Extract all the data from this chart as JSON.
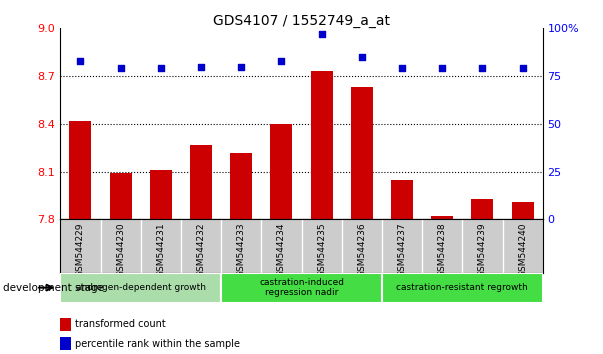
{
  "title": "GDS4107 / 1552749_a_at",
  "categories": [
    "GSM544229",
    "GSM544230",
    "GSM544231",
    "GSM544232",
    "GSM544233",
    "GSM544234",
    "GSM544235",
    "GSM544236",
    "GSM544237",
    "GSM544238",
    "GSM544239",
    "GSM544240"
  ],
  "bar_values": [
    8.42,
    8.09,
    8.11,
    8.27,
    8.22,
    8.4,
    8.73,
    8.63,
    8.05,
    7.82,
    7.93,
    7.91
  ],
  "dot_values": [
    83,
    79,
    79,
    80,
    80,
    83,
    97,
    85,
    79,
    79,
    79,
    79
  ],
  "bar_color": "#cc0000",
  "dot_color": "#0000cc",
  "ylim_left": [
    7.8,
    9.0
  ],
  "ylim_right": [
    0,
    100
  ],
  "yticks_left": [
    7.8,
    8.1,
    8.4,
    8.7,
    9.0
  ],
  "yticks_right": [
    0,
    25,
    50,
    75,
    100
  ],
  "ytick_labels_right": [
    "0",
    "25",
    "50",
    "75",
    "100%"
  ],
  "hlines": [
    8.1,
    8.4,
    8.7
  ],
  "groups": [
    {
      "label": "androgen-dependent growth",
      "start": 0,
      "end": 3,
      "color": "#aaddaa"
    },
    {
      "label": "castration-induced\nregression nadir",
      "start": 4,
      "end": 7,
      "color": "#44cc44"
    },
    {
      "label": "castration-resistant regrowth",
      "start": 8,
      "end": 11,
      "color": "#44cc44"
    }
  ],
  "group_label": "development stage",
  "legend_items": [
    {
      "label": "transformed count",
      "color": "#cc0000"
    },
    {
      "label": "percentile rank within the sample",
      "color": "#0000cc"
    }
  ],
  "bar_width": 0.55,
  "tick_label_bg": "#cccccc",
  "plot_bg": "#ffffff"
}
